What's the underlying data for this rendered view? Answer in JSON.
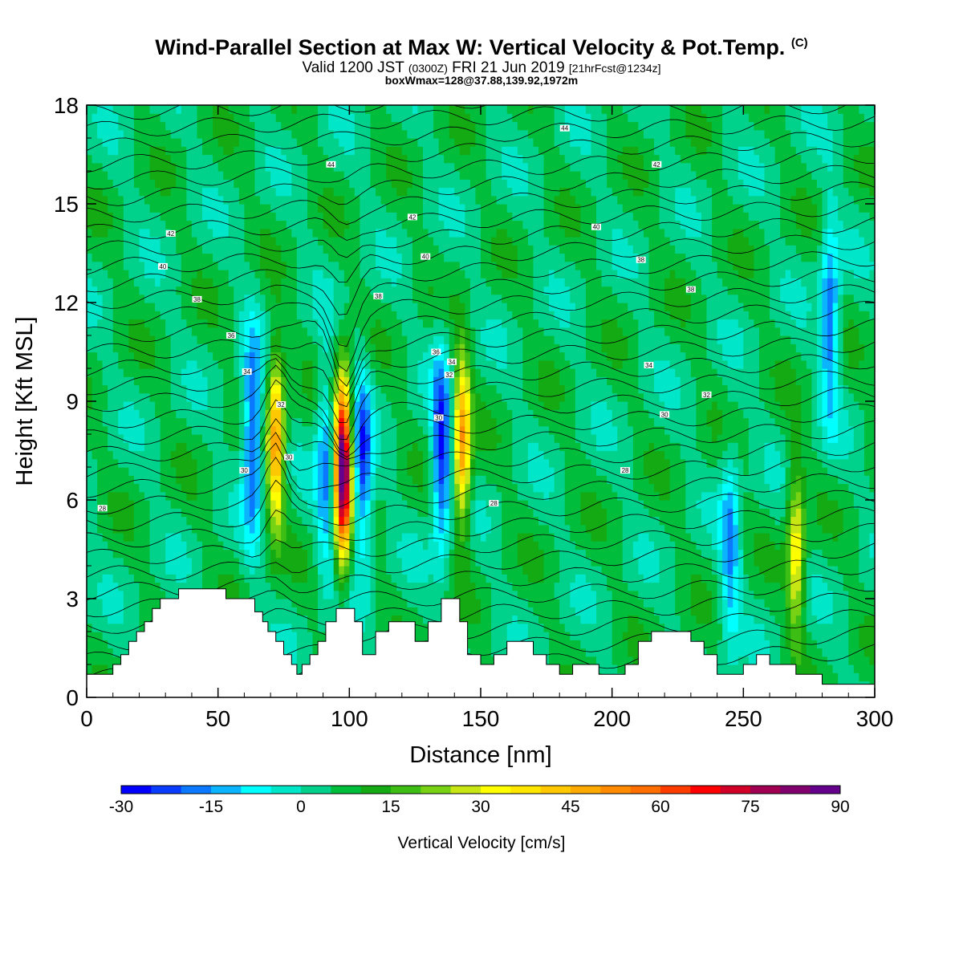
{
  "title": {
    "main": "Wind-Parallel Section at Max W: Vertical Velocity & Pot.Temp.",
    "copyright": "(C)",
    "valid_a": "Valid 1200 JST",
    "valid_b": "(0300Z)",
    "valid_c": "FRI 21 Jun 2019",
    "valid_d": "[21hrFcst@1234z]",
    "box": "boxWmax=128@37.88,139.92,1972m"
  },
  "chart_data": {
    "type": "heatmap",
    "xlabel": "Distance [nm]",
    "ylabel": "Height [Kft MSL]",
    "xlim": [
      0,
      300
    ],
    "ylim": [
      0,
      18
    ],
    "x_ticks": [
      0,
      50,
      100,
      150,
      200,
      250,
      300
    ],
    "y_ticks": [
      0,
      3,
      6,
      9,
      12,
      15,
      18
    ],
    "colorbar": {
      "label": "Vertical Velocity [cm/s]",
      "ticks": [
        -30,
        -15,
        0,
        15,
        30,
        45,
        60,
        75,
        90
      ],
      "boundaries": [
        -30,
        -25,
        -20,
        -15,
        -10,
        -5,
        0,
        5,
        10,
        15,
        20,
        25,
        30,
        35,
        40,
        45,
        50,
        55,
        60,
        65,
        70,
        75,
        80,
        85,
        90
      ],
      "colors": [
        "#0000ff",
        "#0a3cff",
        "#0a78ff",
        "#0ab4ff",
        "#00ffff",
        "#00e6c8",
        "#00d28c",
        "#00be3c",
        "#14aa14",
        "#3cbe14",
        "#78d214",
        "#c8e614",
        "#ffff00",
        "#ffe600",
        "#ffc800",
        "#ffaa00",
        "#ff8c00",
        "#ff6e00",
        "#ff3c00",
        "#ff0000",
        "#d20028",
        "#a00050",
        "#82006e",
        "#64008c"
      ]
    },
    "background_w": 5,
    "updrafts": [
      {
        "x": 72,
        "peak_kft": 7.8,
        "w": 45
      },
      {
        "x": 97.5,
        "peak_kft": 7.0,
        "w": 88
      },
      {
        "x": 143,
        "peak_kft": 7.8,
        "w": 45
      },
      {
        "x": 270,
        "peak_kft": 4.4,
        "w": 30
      }
    ],
    "downdrafts": [
      {
        "x": 63,
        "peak_kft": 8.0,
        "w": -30
      },
      {
        "x": 91,
        "peak_kft": 7.0,
        "w": -22
      },
      {
        "x": 105,
        "peak_kft": 7.0,
        "w": -28
      },
      {
        "x": 135,
        "peak_kft": 7.5,
        "w": -32
      },
      {
        "x": 283,
        "peak_kft": 11.5,
        "w": -25
      },
      {
        "x": 245,
        "peak_kft": 4.5,
        "w": -20
      }
    ],
    "terrain": {
      "x": [
        0,
        7,
        10,
        13,
        16,
        19,
        22,
        25,
        28,
        35,
        50,
        53,
        60,
        64,
        67,
        69,
        72,
        75,
        78,
        80,
        82,
        85,
        88,
        91,
        95,
        100,
        102,
        105,
        110,
        115,
        120,
        125,
        127,
        130,
        135,
        140,
        142,
        145,
        150,
        155,
        160,
        165,
        170,
        175,
        180,
        185,
        190,
        195,
        200,
        205,
        210,
        215,
        220,
        225,
        230,
        235,
        240,
        245,
        250,
        255,
        260,
        265,
        270,
        275,
        280,
        285,
        290,
        295,
        300
      ],
      "kft": [
        0.7,
        0.7,
        1.0,
        1.3,
        1.7,
        2.0,
        2.3,
        2.7,
        3.0,
        3.3,
        3.3,
        3.0,
        3.0,
        2.6,
        2.3,
        2.0,
        1.7,
        1.3,
        1.0,
        0.7,
        1.0,
        1.3,
        1.7,
        2.3,
        2.7,
        2.7,
        2.3,
        1.3,
        2.0,
        2.3,
        2.3,
        1.7,
        1.7,
        2.3,
        3.0,
        3.0,
        2.3,
        1.3,
        1.0,
        1.3,
        1.7,
        1.7,
        1.3,
        1.0,
        0.7,
        1.0,
        1.0,
        0.7,
        0.7,
        1.0,
        1.7,
        2.0,
        2.0,
        2.0,
        1.7,
        1.3,
        0.7,
        0.7,
        1.0,
        1.3,
        1.0,
        1.0,
        0.7,
        0.7,
        0.4,
        0.4,
        0.4,
        0.4,
        0.4
      ]
    },
    "theta_contour_labels": [
      {
        "x": 6,
        "kft": 5.75,
        "value": "28"
      },
      {
        "x": 205,
        "kft": 6.9,
        "value": "28"
      },
      {
        "x": 155,
        "kft": 5.9,
        "value": "28"
      },
      {
        "x": 60,
        "kft": 6.9,
        "value": "30"
      },
      {
        "x": 77,
        "kft": 7.3,
        "value": "30"
      },
      {
        "x": 134,
        "kft": 8.5,
        "value": "30"
      },
      {
        "x": 220,
        "kft": 8.6,
        "value": "30"
      },
      {
        "x": 74,
        "kft": 8.9,
        "value": "32"
      },
      {
        "x": 138,
        "kft": 9.8,
        "value": "32"
      },
      {
        "x": 236,
        "kft": 9.2,
        "value": "32"
      },
      {
        "x": 61,
        "kft": 9.9,
        "value": "34"
      },
      {
        "x": 139,
        "kft": 10.2,
        "value": "34"
      },
      {
        "x": 214,
        "kft": 10.1,
        "value": "34"
      },
      {
        "x": 55,
        "kft": 11.0,
        "value": "36"
      },
      {
        "x": 133,
        "kft": 10.5,
        "value": "36"
      },
      {
        "x": 42,
        "kft": 12.1,
        "value": "38"
      },
      {
        "x": 111,
        "kft": 12.2,
        "value": "38"
      },
      {
        "x": 211,
        "kft": 13.3,
        "value": "38"
      },
      {
        "x": 230,
        "kft": 12.4,
        "value": "38"
      },
      {
        "x": 29,
        "kft": 13.1,
        "value": "40"
      },
      {
        "x": 129,
        "kft": 13.4,
        "value": "40"
      },
      {
        "x": 194,
        "kft": 14.3,
        "value": "40"
      },
      {
        "x": 32,
        "kft": 14.1,
        "value": "42"
      },
      {
        "x": 124,
        "kft": 14.6,
        "value": "42"
      },
      {
        "x": 217,
        "kft": 16.2,
        "value": "42"
      },
      {
        "x": 93,
        "kft": 16.2,
        "value": "44"
      },
      {
        "x": 182,
        "kft": 17.3,
        "value": "44"
      }
    ]
  }
}
